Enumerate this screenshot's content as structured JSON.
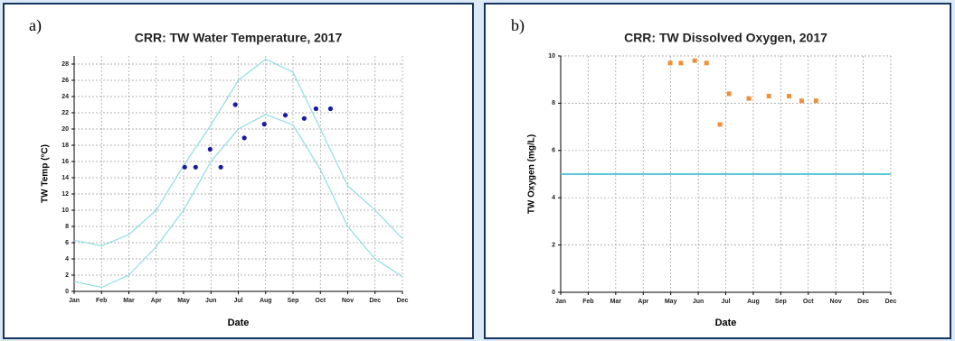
{
  "chart_data": [
    {
      "type": "scatter",
      "panel_label": "a)",
      "title": "CRR: TW Water Temperature, 2017",
      "xlabel": "Date",
      "ylabel": "TW Temp (°C)",
      "xlim": [
        0,
        12
      ],
      "xticks": [
        {
          "value": 0,
          "label": "Jan"
        },
        {
          "value": 1,
          "label": "Feb"
        },
        {
          "value": 2,
          "label": "Mar"
        },
        {
          "value": 3,
          "label": "Apr"
        },
        {
          "value": 4,
          "label": "May"
        },
        {
          "value": 5,
          "label": "Jun"
        },
        {
          "value": 6,
          "label": "Jul"
        },
        {
          "value": 7,
          "label": "Aug"
        },
        {
          "value": 8,
          "label": "Sep"
        },
        {
          "value": 9,
          "label": "Oct"
        },
        {
          "value": 10,
          "label": "Nov"
        },
        {
          "value": 11,
          "label": "Dec"
        },
        {
          "value": 12,
          "label": "Dec"
        }
      ],
      "ylim": [
        0,
        29
      ],
      "yticks": [
        0,
        2,
        4,
        6,
        8,
        10,
        12,
        14,
        16,
        18,
        20,
        22,
        24,
        26,
        28
      ],
      "grid": true,
      "series": [
        {
          "kind": "line",
          "color": "#8fdede",
          "x": [
            0,
            1,
            2,
            3,
            4,
            5,
            6,
            7,
            8,
            9,
            10,
            11,
            12
          ],
          "values": [
            6.3,
            5.6,
            7,
            10,
            15.5,
            20.5,
            26,
            28.6,
            27,
            20,
            13,
            10,
            6.5
          ]
        },
        {
          "kind": "line",
          "color": "#8fdede",
          "x": [
            0,
            1,
            2,
            3,
            4,
            5,
            6,
            7,
            8,
            9,
            10,
            11,
            12
          ],
          "values": [
            1.2,
            0.5,
            2,
            5.5,
            10,
            16,
            20,
            21.8,
            20.5,
            15,
            8,
            4,
            1.8
          ]
        },
        {
          "kind": "points",
          "marker": "circle",
          "color": "#1a1aa0",
          "x": [
            4.04,
            4.44,
            4.97,
            5.36,
            5.89,
            6.22,
            6.95,
            7.72,
            8.41,
            8.84,
            9.37
          ],
          "values": [
            15.3,
            15.3,
            17.5,
            15.3,
            23,
            18.9,
            20.6,
            21.7,
            21.3,
            22.5,
            22.5
          ]
        }
      ]
    },
    {
      "type": "scatter",
      "panel_label": "b)",
      "title": "CRR: TW Dissolved Oxygen, 2017",
      "xlabel": "Date",
      "ylabel": "TW Oxygen (mg/L)",
      "xlim": [
        0,
        12
      ],
      "xticks": [
        {
          "value": 0,
          "label": "Jan"
        },
        {
          "value": 1,
          "label": "Feb"
        },
        {
          "value": 2,
          "label": "Mar"
        },
        {
          "value": 3,
          "label": "Apr"
        },
        {
          "value": 4,
          "label": "May"
        },
        {
          "value": 5,
          "label": "Jun"
        },
        {
          "value": 6,
          "label": "Jul"
        },
        {
          "value": 7,
          "label": "Aug"
        },
        {
          "value": 8,
          "label": "Sep"
        },
        {
          "value": 9,
          "label": "Oct"
        },
        {
          "value": 10,
          "label": "Nov"
        },
        {
          "value": 11,
          "label": "Dec"
        },
        {
          "value": 12,
          "label": "Dec"
        }
      ],
      "ylim": [
        0,
        10
      ],
      "yticks": [
        0,
        2,
        4,
        6,
        8,
        10
      ],
      "grid": true,
      "series": [
        {
          "kind": "line",
          "color": "#5bc8dc",
          "x": [
            0,
            12
          ],
          "values": [
            5,
            5
          ]
        },
        {
          "kind": "points",
          "marker": "square",
          "color": "#f0903a",
          "x": [
            3.98,
            4.37,
            4.87,
            5.3,
            5.79,
            6.12,
            6.84,
            7.57,
            8.3,
            8.76,
            9.28
          ],
          "values": [
            9.7,
            9.7,
            9.8,
            9.7,
            7.1,
            8.4,
            8.2,
            8.3,
            8.3,
            8.1,
            8.1
          ]
        }
      ]
    }
  ]
}
